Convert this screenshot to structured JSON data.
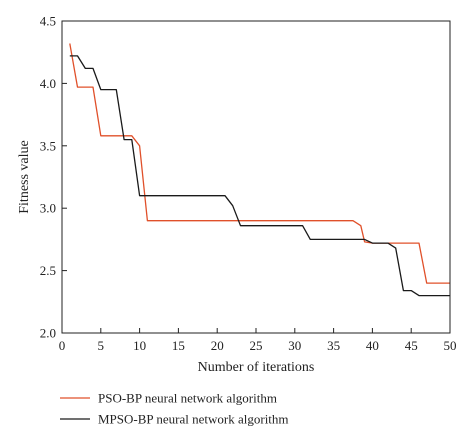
{
  "chart_data": {
    "type": "line",
    "title": "",
    "xlabel": "Number of iterations",
    "ylabel": "Fitness value",
    "xlim": [
      0,
      50
    ],
    "ylim": [
      2.0,
      4.5
    ],
    "xticks": [
      0,
      5,
      10,
      15,
      20,
      25,
      30,
      35,
      40,
      45,
      50
    ],
    "yticks": [
      2.0,
      2.5,
      3.0,
      3.5,
      4.0,
      4.5
    ],
    "xtick_labels": [
      "0",
      "5",
      "10",
      "15",
      "20",
      "25",
      "30",
      "35",
      "40",
      "45",
      "50"
    ],
    "ytick_labels": [
      "2.0",
      "2.5",
      "3.0",
      "3.5",
      "4.0",
      "4.5"
    ],
    "grid": false,
    "legend_position": "bottom-outside",
    "series": [
      {
        "name": "PSO-BP neural network algorithm",
        "color": "#e0502a",
        "x": [
          1,
          2,
          3,
          4,
          5,
          6,
          7,
          8,
          9,
          10,
          11,
          12,
          14,
          16,
          18,
          20,
          22,
          24,
          26,
          28,
          30,
          32,
          34,
          36,
          37.5,
          38.5,
          39,
          40,
          42,
          44,
          46,
          47,
          48,
          49,
          50
        ],
        "y": [
          4.32,
          3.97,
          3.97,
          3.97,
          3.58,
          3.58,
          3.58,
          3.58,
          3.58,
          3.5,
          2.9,
          2.9,
          2.9,
          2.9,
          2.9,
          2.9,
          2.9,
          2.9,
          2.9,
          2.9,
          2.9,
          2.9,
          2.9,
          2.9,
          2.9,
          2.86,
          2.73,
          2.72,
          2.72,
          2.72,
          2.72,
          2.4,
          2.4,
          2.4,
          2.4
        ]
      },
      {
        "name": "MPSO-BP neural network algorithm",
        "color": "#1a1a1a",
        "x": [
          1,
          2,
          3,
          4,
          5,
          6,
          7,
          8,
          9,
          10,
          11,
          12,
          14,
          16,
          18,
          20,
          21,
          22,
          23,
          24,
          26,
          28,
          30,
          31,
          32,
          34,
          36,
          38,
          39,
          40,
          42,
          43,
          44,
          45,
          46,
          48,
          50
        ],
        "y": [
          4.22,
          4.22,
          4.12,
          4.12,
          3.95,
          3.95,
          3.95,
          3.55,
          3.55,
          3.1,
          3.1,
          3.1,
          3.1,
          3.1,
          3.1,
          3.1,
          3.1,
          3.02,
          2.86,
          2.86,
          2.86,
          2.86,
          2.86,
          2.86,
          2.75,
          2.75,
          2.75,
          2.75,
          2.75,
          2.72,
          2.72,
          2.68,
          2.34,
          2.34,
          2.3,
          2.3,
          2.3
        ]
      }
    ]
  }
}
